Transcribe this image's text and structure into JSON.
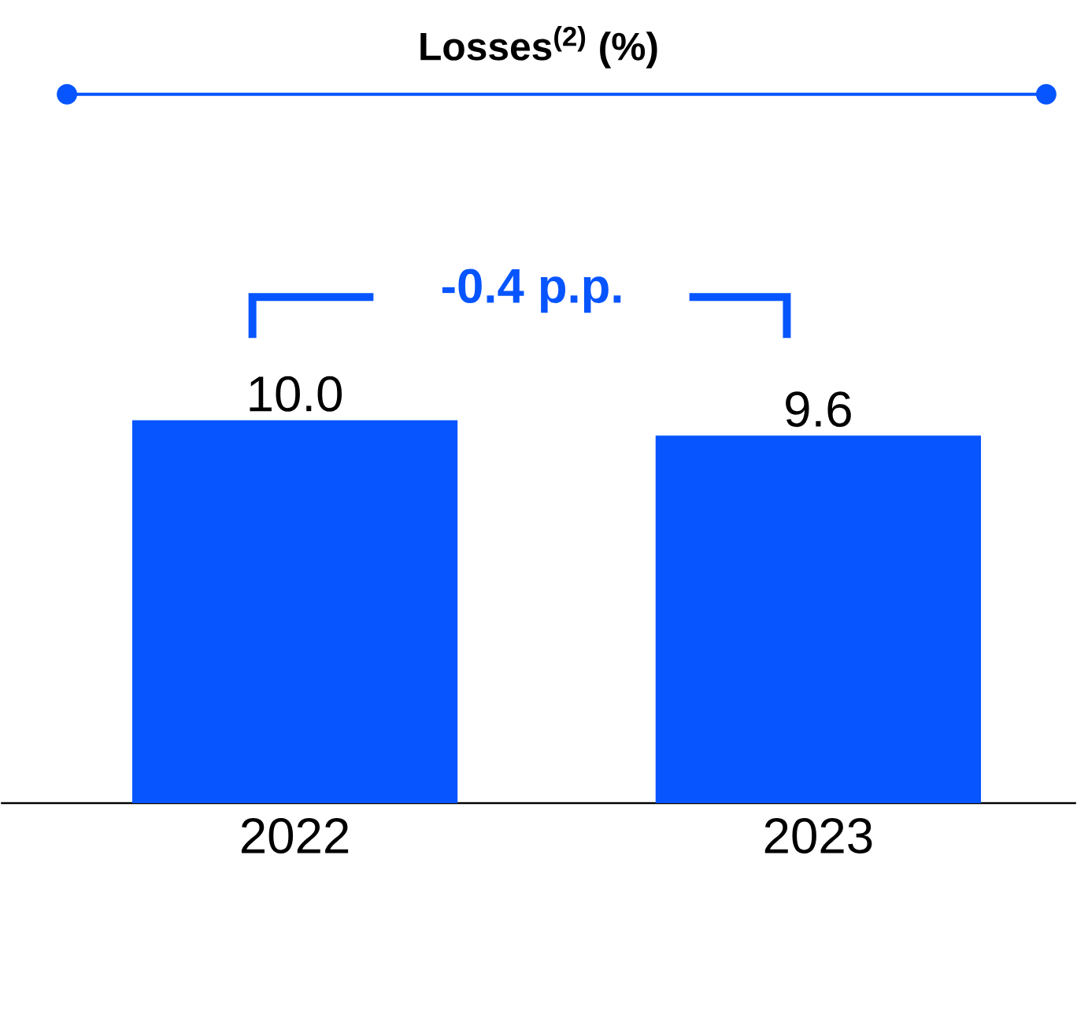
{
  "chart_data": {
    "type": "bar",
    "title": "Losses$^{(2)}$ (%)",
    "categories": [
      "2022",
      "2023"
    ],
    "values": [
      10.0,
      9.6
    ],
    "value_labels": [
      "10.0",
      "9.6"
    ],
    "color": "#0655ff",
    "annotations": [
      "-0.4 p.p."
    ]
  }
}
